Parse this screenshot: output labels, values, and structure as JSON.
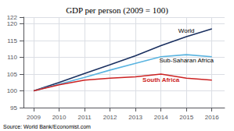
{
  "chart_data": {
    "type": "line",
    "title": "GDP per person (2009 = 100)",
    "source": "Source: World Bank/Economist.com",
    "x": [
      2009,
      2010,
      2011,
      2012,
      2013,
      2014,
      2015,
      2016
    ],
    "series": [
      {
        "name": "World",
        "color": "#1a3060",
        "values": [
          100,
          102.5,
          105.2,
          107.8,
          110.5,
          113.5,
          116.2,
          118.5
        ]
      },
      {
        "name": "Sub-Saharan Africa",
        "color": "#5ab4e0",
        "values": [
          100,
          102.0,
          104.0,
          106.2,
          108.2,
          110.2,
          110.8,
          110.2
        ]
      },
      {
        "name": "South Africa",
        "color": "#cc2222",
        "values": [
          100,
          101.8,
          103.2,
          103.8,
          104.2,
          105.0,
          103.8,
          103.2
        ]
      }
    ],
    "xlim": [
      2008.6,
      2016.5
    ],
    "xticks": [
      2009,
      2010,
      2011,
      2012,
      2013,
      2014,
      2015,
      2016
    ],
    "ylim": [
      95,
      122
    ],
    "yticks": [
      95,
      100,
      105,
      110,
      115,
      120
    ],
    "grid": true
  }
}
